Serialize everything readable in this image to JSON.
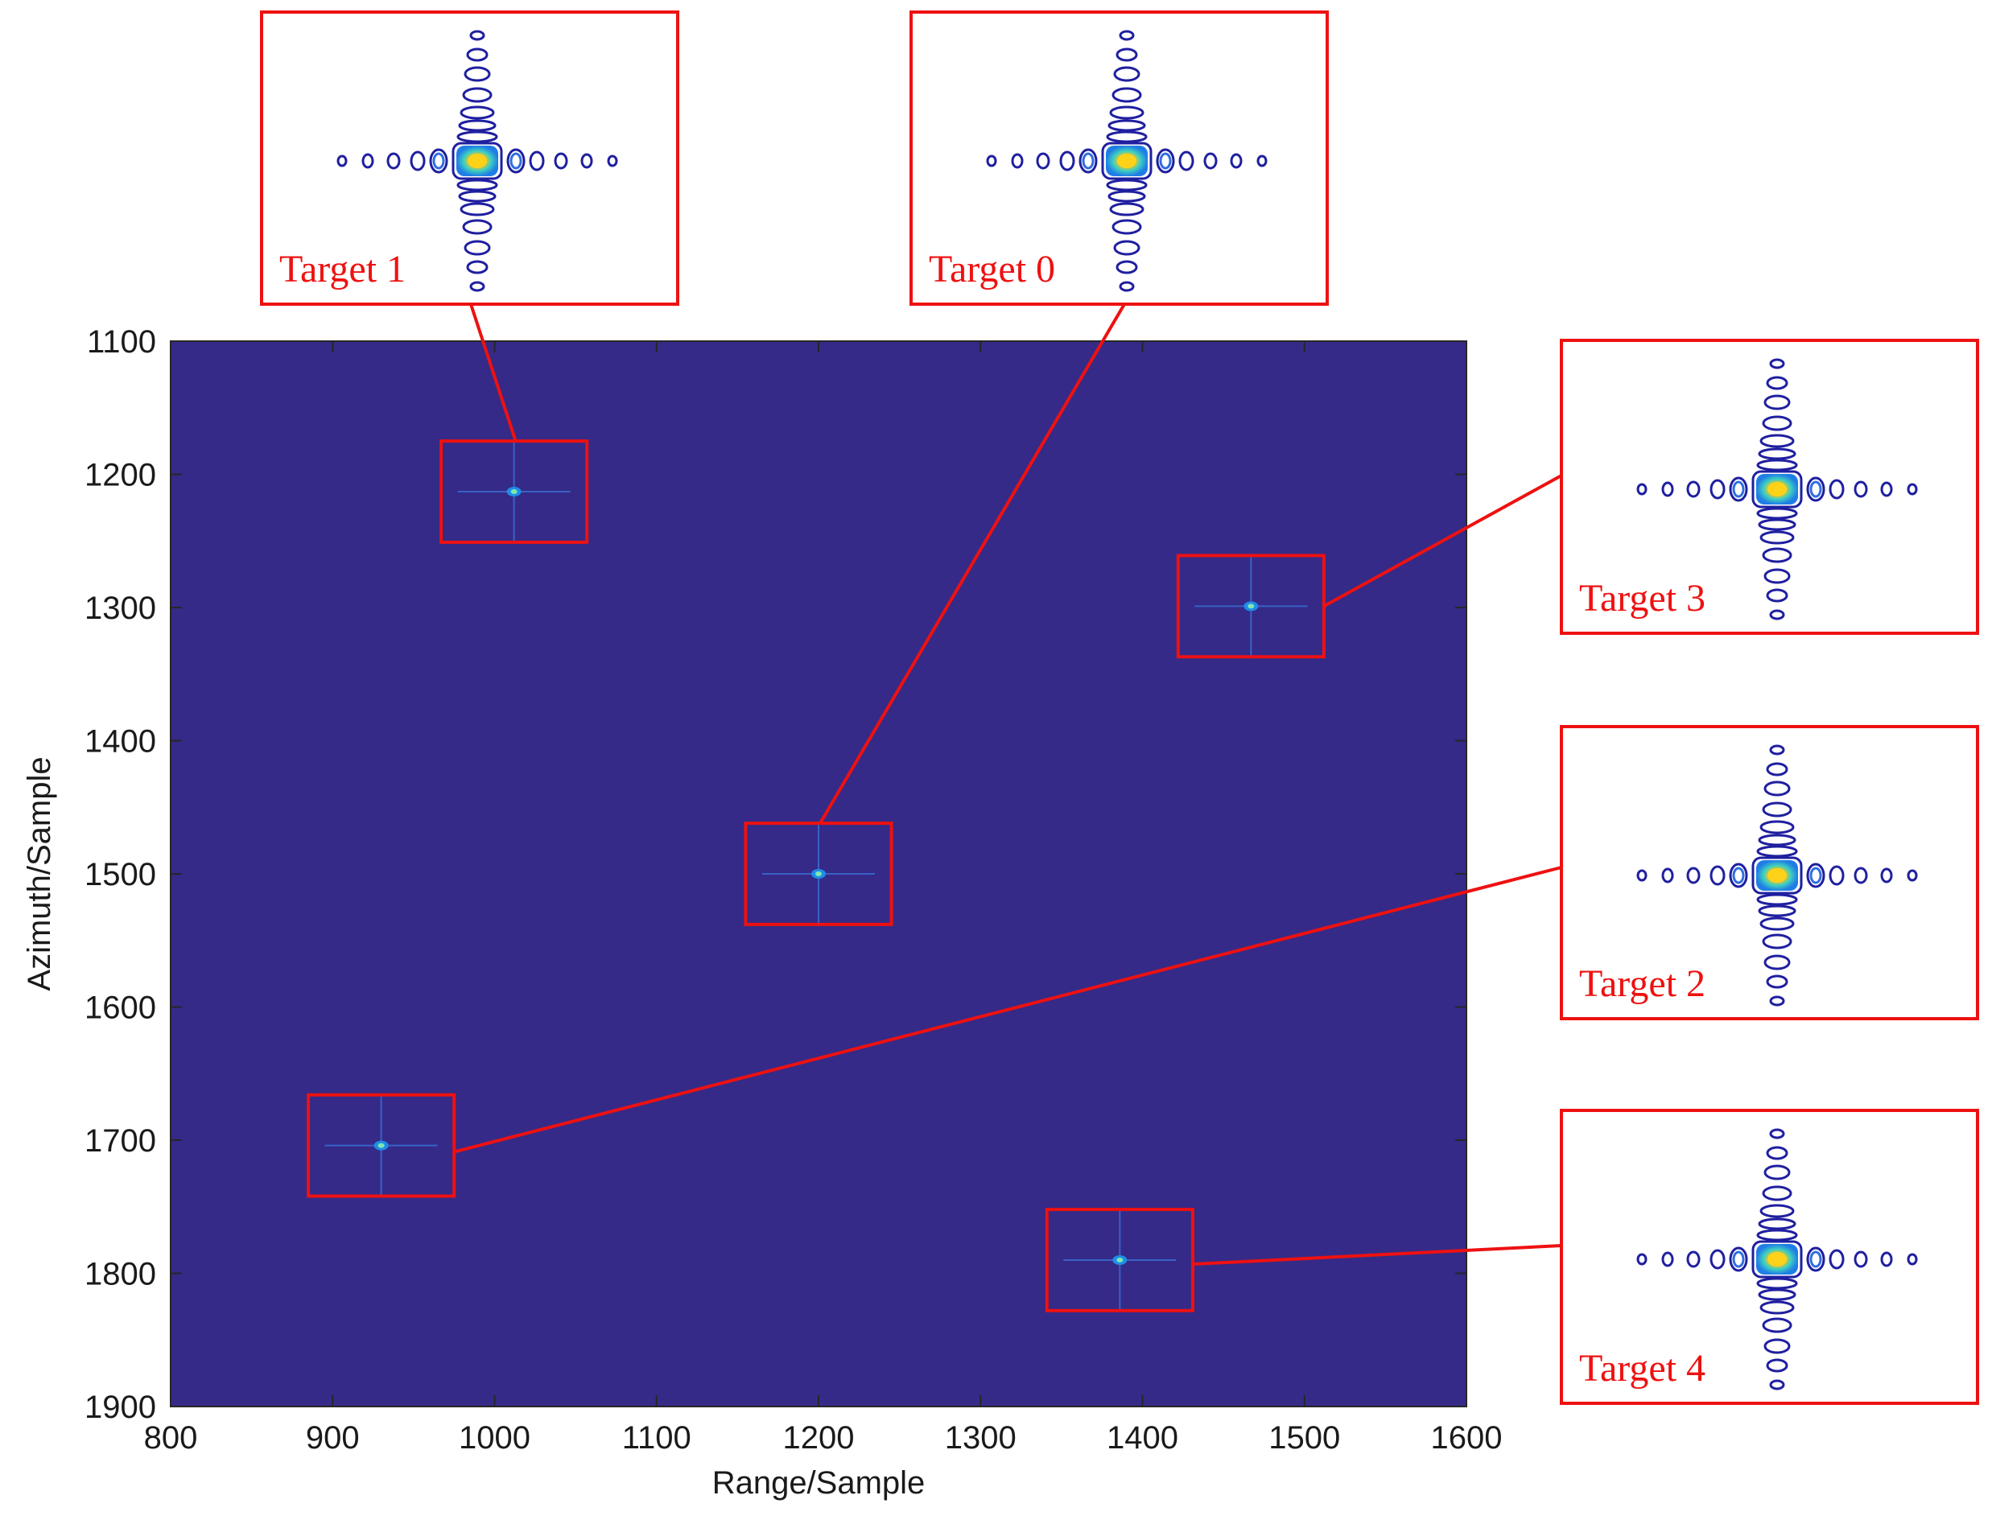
{
  "chart_data": {
    "type": "heatmap",
    "title": "",
    "xlabel": "Range/Sample",
    "ylabel": "Azimuth/Sample",
    "xlim": [
      800,
      1600
    ],
    "ylim": [
      1100,
      1900
    ],
    "y_reversed": true,
    "x_ticks": [
      800,
      900,
      1000,
      1100,
      1200,
      1300,
      1400,
      1500,
      1600
    ],
    "y_ticks": [
      1100,
      1200,
      1300,
      1400,
      1500,
      1600,
      1700,
      1800,
      1900
    ],
    "grid": false,
    "background_color": "#352a87",
    "colormap": "parula",
    "targets": [
      {
        "name": "Target 0",
        "range": 1200,
        "azimuth": 1500
      },
      {
        "name": "Target 1",
        "range": 1012,
        "azimuth": 1213
      },
      {
        "name": "Target 2",
        "range": 930,
        "azimuth": 1704
      },
      {
        "name": "Target 3",
        "range": 1467,
        "azimuth": 1299
      },
      {
        "name": "Target 4",
        "range": 1386,
        "azimuth": 1790
      }
    ],
    "zoom_box_half_width": 45,
    "zoom_box_half_height": 38
  },
  "colors": {
    "annotation": "#ee1111",
    "contour_outer": "#1f1fa0",
    "contour_mid": "#2f6ee0",
    "peak_core": "#ffd21a"
  }
}
